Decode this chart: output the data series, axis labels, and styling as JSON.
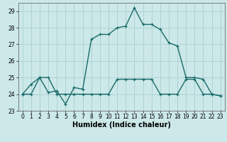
{
  "xlabel": "Humidex (Indice chaleur)",
  "line1_x": [
    0,
    1,
    2,
    3,
    4,
    5,
    6,
    7,
    8,
    9,
    10,
    11,
    12,
    13,
    14,
    15,
    16,
    17,
    18,
    19,
    20,
    21,
    22,
    23
  ],
  "line1_y": [
    24.0,
    24.6,
    25.0,
    24.1,
    24.2,
    23.4,
    24.4,
    24.3,
    27.3,
    27.6,
    27.6,
    28.0,
    28.1,
    29.2,
    28.2,
    28.2,
    27.9,
    27.1,
    26.9,
    25.0,
    25.0,
    24.9,
    24.0,
    23.9
  ],
  "line2_x": [
    0,
    1,
    2,
    3,
    4,
    5,
    6,
    7,
    8,
    9,
    10,
    11,
    12,
    13,
    14,
    15,
    16,
    17,
    18,
    19,
    20,
    21,
    22,
    23
  ],
  "line2_y": [
    24.0,
    24.0,
    25.0,
    25.0,
    24.0,
    24.0,
    24.0,
    24.0,
    24.0,
    24.0,
    24.0,
    24.9,
    24.9,
    24.9,
    24.9,
    24.9,
    24.0,
    24.0,
    24.0,
    24.9,
    24.9,
    24.0,
    24.0,
    23.9
  ],
  "line_color": "#1a6b6b",
  "bg_color": "#cce8e8",
  "grid_color": "#aacfcf",
  "ylim": [
    23.0,
    29.5
  ],
  "xlim": [
    -0.5,
    23.5
  ],
  "yticks": [
    23,
    24,
    25,
    26,
    27,
    28,
    29
  ],
  "xticks": [
    0,
    1,
    2,
    3,
    4,
    5,
    6,
    7,
    8,
    9,
    10,
    11,
    12,
    13,
    14,
    15,
    16,
    17,
    18,
    19,
    20,
    21,
    22,
    23
  ],
  "xlabel_fontsize": 7,
  "tick_fontsize": 5.5
}
